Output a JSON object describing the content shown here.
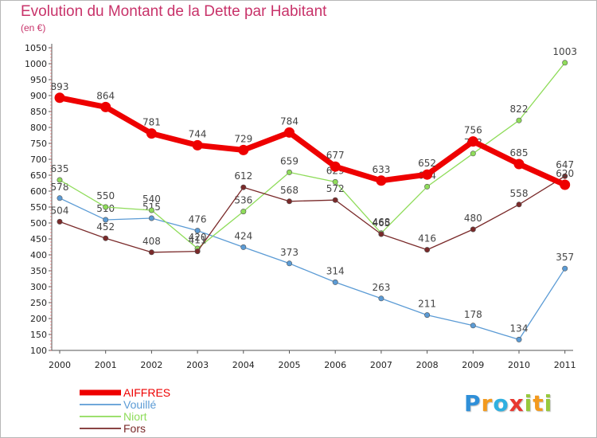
{
  "chart_data": {
    "type": "line",
    "title": "Evolution du Montant de la Dette par Habitant",
    "subtitle": "(en €)",
    "categories": [
      "2000",
      "2001",
      "2002",
      "2003",
      "2004",
      "2005",
      "2006",
      "2007",
      "2008",
      "2009",
      "2010",
      "2011"
    ],
    "yticks": [
      100,
      150,
      200,
      250,
      300,
      350,
      400,
      450,
      500,
      550,
      600,
      650,
      700,
      750,
      800,
      850,
      900,
      950,
      1000,
      1050
    ],
    "ylim": [
      100,
      1050
    ],
    "grid": false,
    "legend_position": "bottom-left",
    "series": [
      {
        "name": "Vouillé",
        "color": "#5b9bd5",
        "width": 1.3,
        "values": [
          578,
          510,
          515,
          476,
          424,
          373,
          314,
          263,
          211,
          178,
          134,
          357
        ]
      },
      {
        "name": "Niort",
        "color": "#8fdc5a",
        "width": 1.3,
        "values": [
          635,
          550,
          540,
          420,
          536,
          659,
          629,
          468,
          614,
          718,
          822,
          1003
        ]
      },
      {
        "name": "Fors",
        "color": "#7a2a2a",
        "width": 1.3,
        "values": [
          504,
          452,
          408,
          411,
          612,
          568,
          572,
          465,
          416,
          480,
          558,
          647
        ]
      },
      {
        "name": "AIFFRES",
        "color": "#ee0000",
        "width": 7,
        "values": [
          893,
          864,
          781,
          744,
          729,
          784,
          677,
          633,
          652,
          756,
          685,
          620
        ]
      }
    ],
    "legend_order": [
      "AIFFRES",
      "Vouillé",
      "Niort",
      "Fors"
    ],
    "brand": {
      "letters": [
        "P",
        "r",
        "o",
        "x",
        "i",
        "t",
        "i"
      ],
      "colors": [
        "#2f8fd8",
        "#f39a1e",
        "#2fb0e0",
        "#e8372e",
        "#97c93d",
        "#f39a1e",
        "#97c93d"
      ]
    }
  }
}
